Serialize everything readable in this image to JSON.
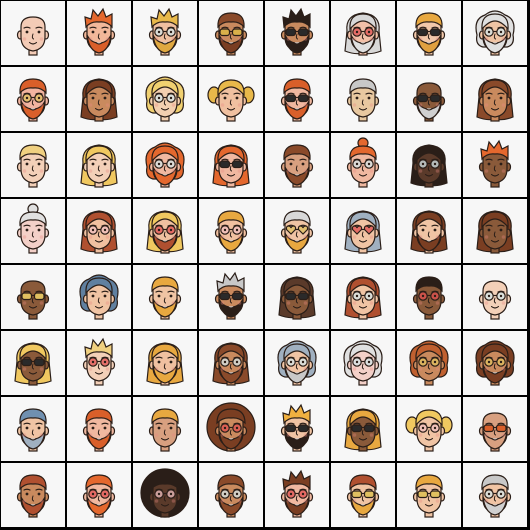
{
  "grid": {
    "rows": 8,
    "cols": 8,
    "colors": {
      "background": "#f7f7f7",
      "gridline": "#000000",
      "outline": "#2a1e18"
    },
    "avatars": [
      {
        "skin": "#f3cbb6",
        "hair": "none",
        "hairColor": "#b0a090",
        "beard": false,
        "beardColor": "#000",
        "glasses": "none",
        "lens": "#000"
      },
      {
        "skin": "#f2b89a",
        "hair": "spiky",
        "hairColor": "#e4682e",
        "beard": true,
        "beardColor": "#d95f2a",
        "glasses": "none",
        "lens": "#000"
      },
      {
        "skin": "#f0c0a0",
        "hair": "spiky",
        "hairColor": "#e8b84a",
        "beard": true,
        "beardColor": "#e0a840",
        "glasses": "round",
        "lens": "#d4e6e8"
      },
      {
        "skin": "#c98a5e",
        "hair": "short",
        "hairColor": "#8a4a2a",
        "beard": true,
        "beardColor": "#7a3e22",
        "glasses": "sun",
        "lens": "#d9b04a"
      },
      {
        "skin": "#c98a5e",
        "hair": "spiky",
        "hairColor": "#2a1e18",
        "beard": true,
        "beardColor": "#2a1e18",
        "glasses": "sun",
        "lens": "#2a2a2a"
      },
      {
        "skin": "#f2c0a8",
        "hair": "long",
        "hairColor": "#d8d8d8",
        "beard": true,
        "beardColor": "#e0e0e0",
        "glasses": "round",
        "lens": "#e05050"
      },
      {
        "skin": "#f2c8aa",
        "hair": "short",
        "hairColor": "#e8a840",
        "beard": true,
        "beardColor": "#e0a040",
        "glasses": "sun",
        "lens": "#2a2a2a"
      },
      {
        "skin": "#f0c4a4",
        "hair": "curly",
        "hairColor": "#e0e0e0",
        "beard": true,
        "beardColor": "#e0e0e0",
        "glasses": "round",
        "lens": "#d4e6e8"
      },
      {
        "skin": "#f2b4a0",
        "hair": "short",
        "hairColor": "#d95f2a",
        "beard": true,
        "beardColor": "#d95f2a",
        "glasses": "round",
        "lens": "#e0c060"
      },
      {
        "skin": "#c98a5e",
        "hair": "long",
        "hairColor": "#7a3e22",
        "beard": false,
        "beardColor": "#000",
        "glasses": "none",
        "lens": "#000"
      },
      {
        "skin": "#f3d0b0",
        "hair": "curly",
        "hairColor": "#f0d070",
        "beard": false,
        "beardColor": "#000",
        "glasses": "round",
        "lens": "#d4e6e8"
      },
      {
        "skin": "#f0c0a0",
        "hair": "pigtails",
        "hairColor": "#e8b84a",
        "beard": false,
        "beardColor": "#000",
        "glasses": "none",
        "lens": "#000"
      },
      {
        "skin": "#f0b8a0",
        "hair": "short",
        "hairColor": "#d95f2a",
        "beard": true,
        "beardColor": "#d95f2a",
        "glasses": "sun",
        "lens": "#2a2a2a"
      },
      {
        "skin": "#e8c8a0",
        "hair": "short",
        "hairColor": "#c8c8c8",
        "beard": false,
        "beardColor": "#000",
        "glasses": "none",
        "lens": "#000"
      },
      {
        "skin": "#8a5a3a",
        "hair": "none",
        "hairColor": "#000",
        "beard": true,
        "beardColor": "#d0d0d0",
        "glasses": "sun",
        "lens": "#2a2a2a"
      },
      {
        "skin": "#c98a5e",
        "hair": "long",
        "hairColor": "#8a4a2a",
        "beard": false,
        "beardColor": "#000",
        "glasses": "none",
        "lens": "#000"
      },
      {
        "skin": "#f3d0b8",
        "hair": "short",
        "hairColor": "#f0d080",
        "beard": false,
        "beardColor": "#000",
        "glasses": "none",
        "lens": "#000"
      },
      {
        "skin": "#f3d0b8",
        "hair": "long",
        "hairColor": "#f0c860",
        "beard": false,
        "beardColor": "#000",
        "glasses": "none",
        "lens": "#000"
      },
      {
        "skin": "#f0b8a0",
        "hair": "curly",
        "hairColor": "#e4682e",
        "beard": true,
        "beardColor": "#e4682e",
        "glasses": "round",
        "lens": "#d4e6e8"
      },
      {
        "skin": "#f0b8a0",
        "hair": "long",
        "hairColor": "#e4682e",
        "beard": false,
        "beardColor": "#000",
        "glasses": "sun",
        "lens": "#2a2a2a"
      },
      {
        "skin": "#d8a080",
        "hair": "short",
        "hairColor": "#8a4a2a",
        "beard": true,
        "beardColor": "#8a4a2a",
        "glasses": "none",
        "lens": "#000"
      },
      {
        "skin": "#f0b8a0",
        "hair": "bun",
        "hairColor": "#e4682e",
        "beard": false,
        "beardColor": "#000",
        "glasses": "round",
        "lens": "#d4e6e8"
      },
      {
        "skin": "#5a3a2a",
        "hair": "long",
        "hairColor": "#2a1e18",
        "beard": false,
        "beardColor": "#000",
        "glasses": "round",
        "lens": "#d4e6e8"
      },
      {
        "skin": "#8a5a3a",
        "hair": "spiky",
        "hairColor": "#e4682e",
        "beard": false,
        "beardColor": "#000",
        "glasses": "none",
        "lens": "#000"
      },
      {
        "skin": "#f3d0c8",
        "hair": "bun",
        "hairColor": "#e0e0e0",
        "beard": false,
        "beardColor": "#000",
        "glasses": "none",
        "lens": "#000"
      },
      {
        "skin": "#f0c0a0",
        "hair": "long",
        "hairColor": "#b05030",
        "beard": false,
        "beardColor": "#000",
        "glasses": "round",
        "lens": "#f0c0c0"
      },
      {
        "skin": "#f0c0a0",
        "hair": "long",
        "hairColor": "#f0c860",
        "beard": true,
        "beardColor": "#b05030",
        "glasses": "round",
        "lens": "#e05050"
      },
      {
        "skin": "#f0c0a0",
        "hair": "short",
        "hairColor": "#e8a840",
        "beard": true,
        "beardColor": "#e8a840",
        "glasses": "round",
        "lens": "#f0c0c0"
      },
      {
        "skin": "#f0c4a4",
        "hair": "short",
        "hairColor": "#d8d8d8",
        "beard": true,
        "beardColor": "#e8a840",
        "glasses": "heart",
        "lens": "#e0c060"
      },
      {
        "skin": "#f0c4a4",
        "hair": "long",
        "hairColor": "#a0b0c0",
        "beard": false,
        "beardColor": "#000",
        "glasses": "heart",
        "lens": "#e05050"
      },
      {
        "skin": "#f0c4a4",
        "hair": "long",
        "hairColor": "#7a3e22",
        "beard": true,
        "beardColor": "#7a3e22",
        "glasses": "none",
        "lens": "#000"
      },
      {
        "skin": "#8a5a3a",
        "hair": "long",
        "hairColor": "#7a3e22",
        "beard": false,
        "beardColor": "#000",
        "glasses": "none",
        "lens": "#000"
      },
      {
        "skin": "#8a5a3a",
        "hair": "none",
        "hairColor": "#000",
        "beard": false,
        "beardColor": "#000",
        "glasses": "sun",
        "lens": "#e0c060"
      },
      {
        "skin": "#f0c4a4",
        "hair": "curly",
        "hairColor": "#6080a0",
        "beard": false,
        "beardColor": "#000",
        "glasses": "none",
        "lens": "#000"
      },
      {
        "skin": "#f0c4a4",
        "hair": "short",
        "hairColor": "#e8a840",
        "beard": true,
        "beardColor": "#e8a840",
        "glasses": "none",
        "lens": "#000"
      },
      {
        "skin": "#c98a5e",
        "hair": "spiky",
        "hairColor": "#c8c8c8",
        "beard": true,
        "beardColor": "#2a1e18",
        "glasses": "sun",
        "lens": "#2a2a2a"
      },
      {
        "skin": "#8a5a3a",
        "hair": "long",
        "hairColor": "#5a3a2a",
        "beard": false,
        "beardColor": "#000",
        "glasses": "sun",
        "lens": "#2a2a2a"
      },
      {
        "skin": "#f0c4a4",
        "hair": "long",
        "hairColor": "#b05030",
        "beard": false,
        "beardColor": "#000",
        "glasses": "round",
        "lens": "#d4e6e8"
      },
      {
        "skin": "#8a5a3a",
        "hair": "short",
        "hairColor": "#2a1e18",
        "beard": false,
        "beardColor": "#000",
        "glasses": "round",
        "lens": "#e05050"
      },
      {
        "skin": "#f3d0b8",
        "hair": "none",
        "hairColor": "#000",
        "beard": false,
        "beardColor": "#000",
        "glasses": "round",
        "lens": "#d4e6e8"
      },
      {
        "skin": "#8a5a3a",
        "hair": "long",
        "hairColor": "#f0c860",
        "beard": false,
        "beardColor": "#000",
        "glasses": "sun",
        "lens": "#2a2a2a"
      },
      {
        "skin": "#f3d0b8",
        "hair": "spiky",
        "hairColor": "#f0d080",
        "beard": false,
        "beardColor": "#000",
        "glasses": "round",
        "lens": "#e05050"
      },
      {
        "skin": "#f0c0a0",
        "hair": "long",
        "hairColor": "#e8a840",
        "beard": true,
        "beardColor": "#e8a840",
        "glasses": "none",
        "lens": "#000"
      },
      {
        "skin": "#c98a5e",
        "hair": "long",
        "hairColor": "#8a4a2a",
        "beard": true,
        "beardColor": "#8a4a2a",
        "glasses": "round",
        "lens": "#d4e6e8"
      },
      {
        "skin": "#f0c4a4",
        "hair": "curly",
        "hairColor": "#a0b0c0",
        "beard": true,
        "beardColor": "#c8c8c8",
        "glasses": "round",
        "lens": "#d4e6e8"
      },
      {
        "skin": "#f3d0c8",
        "hair": "curly",
        "hairColor": "#e0e0e0",
        "beard": false,
        "beardColor": "#000",
        "glasses": "round",
        "lens": "#d4e6e8"
      },
      {
        "skin": "#c98a5e",
        "hair": "curly",
        "hairColor": "#c06030",
        "beard": false,
        "beardColor": "#000",
        "glasses": "round",
        "lens": "#e0c060"
      },
      {
        "skin": "#c98a5e",
        "hair": "curly",
        "hairColor": "#7a3e22",
        "beard": true,
        "beardColor": "#7a3e22",
        "glasses": "round",
        "lens": "#e0c060"
      },
      {
        "skin": "#f0c4a4",
        "hair": "short",
        "hairColor": "#7090b0",
        "beard": true,
        "beardColor": "#a0b0c0",
        "glasses": "none",
        "lens": "#000"
      },
      {
        "skin": "#f0b8a0",
        "hair": "short",
        "hairColor": "#d95f2a",
        "beard": true,
        "beardColor": "#d95f2a",
        "glasses": "none",
        "lens": "#000"
      },
      {
        "skin": "#d8a080",
        "hair": "short",
        "hairColor": "#e8a840",
        "beard": false,
        "beardColor": "#000",
        "glasses": "none",
        "lens": "#000"
      },
      {
        "skin": "#c98a5e",
        "hair": "afro",
        "hairColor": "#7a3e22",
        "beard": true,
        "beardColor": "#7a3e22",
        "glasses": "round",
        "lens": "#e05050"
      },
      {
        "skin": "#f0c4a4",
        "hair": "spiky",
        "hairColor": "#f0b040",
        "beard": true,
        "beardColor": "#2a1e18",
        "glasses": "sun",
        "lens": "#2a2a2a"
      },
      {
        "skin": "#8a5a3a",
        "hair": "long",
        "hairColor": "#e8a840",
        "beard": false,
        "beardColor": "#000",
        "glasses": "sun",
        "lens": "#2a2a2a"
      },
      {
        "skin": "#f0c4a4",
        "hair": "pigtails",
        "hairColor": "#f0c860",
        "beard": false,
        "beardColor": "#000",
        "glasses": "round",
        "lens": "#f0c0c0"
      },
      {
        "skin": "#d8a080",
        "hair": "none",
        "hairColor": "#000",
        "beard": true,
        "beardColor": "#d8a080",
        "glasses": "sun",
        "lens": "#d95f2a"
      },
      {
        "skin": "#c98a5e",
        "hair": "short",
        "hairColor": "#b05030",
        "beard": true,
        "beardColor": "#b05030",
        "glasses": "none",
        "lens": "#000"
      },
      {
        "skin": "#f0b8a0",
        "hair": "short",
        "hairColor": "#e4682e",
        "beard": true,
        "beardColor": "#e4682e",
        "glasses": "round",
        "lens": "#e05050"
      },
      {
        "skin": "#5a3a2a",
        "hair": "afro",
        "hairColor": "#2a1e18",
        "beard": false,
        "beardColor": "#000",
        "glasses": "round",
        "lens": "#f0c0c0"
      },
      {
        "skin": "#c98a5e",
        "hair": "short",
        "hairColor": "#8a4a2a",
        "beard": true,
        "beardColor": "#8a4a2a",
        "glasses": "round",
        "lens": "#d4e6e8"
      },
      {
        "skin": "#f0b8a0",
        "hair": "spiky",
        "hairColor": "#7a3e22",
        "beard": true,
        "beardColor": "#7a3e22",
        "glasses": "round",
        "lens": "#e05050"
      },
      {
        "skin": "#f0c4a4",
        "hair": "short",
        "hairColor": "#b05030",
        "beard": true,
        "beardColor": "#e8a840",
        "glasses": "sun",
        "lens": "#e0c060"
      },
      {
        "skin": "#f0c4a4",
        "hair": "short",
        "hairColor": "#e8a840",
        "beard": false,
        "beardColor": "#000",
        "glasses": "sun",
        "lens": "#e0c060"
      },
      {
        "skin": "#f0c4a4",
        "hair": "short",
        "hairColor": "#c8c8c8",
        "beard": true,
        "beardColor": "#d0d0d0",
        "glasses": "round",
        "lens": "#d4e6e8"
      }
    ]
  }
}
